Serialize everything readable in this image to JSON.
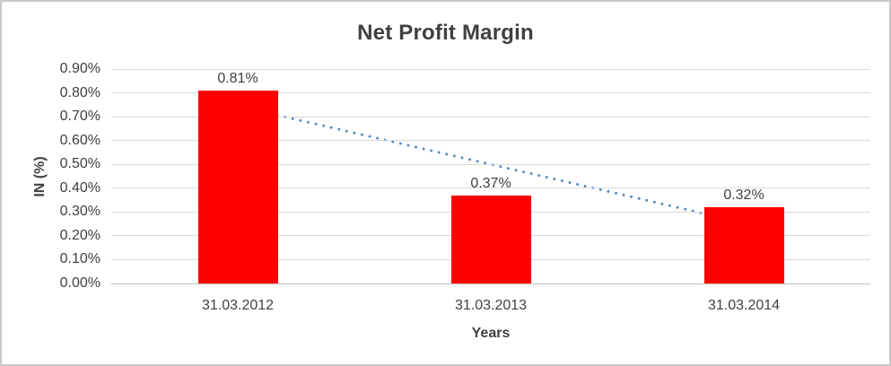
{
  "chart_data": {
    "type": "bar",
    "title": "Net Profit Margin",
    "xlabel": "Years",
    "ylabel": "IN (%)",
    "categories": [
      "31.03.2012",
      "31.03.2013",
      "31.03.2014"
    ],
    "values": [
      0.81,
      0.37,
      0.32
    ],
    "data_labels": [
      "0.81%",
      "0.37%",
      "0.32%"
    ],
    "ylim": [
      0,
      0.9
    ],
    "ytick_labels": [
      "0.90%",
      "0.80%",
      "0.70%",
      "0.60%",
      "0.50%",
      "0.40%",
      "0.30%",
      "0.20%",
      "0.10%",
      "0.00%"
    ],
    "grid": true,
    "legend": "none",
    "bar_color": "#FF0000",
    "trendline": {
      "style": "dotted",
      "color": "#4A86C8",
      "values": [
        0.745,
        0.5,
        0.255
      ]
    },
    "colors": {
      "gridline": "#D9D9D9",
      "axis_line": "#C0C0C0",
      "text": "#404040",
      "border": "#C8C8C8",
      "background": "#FFFFFF"
    }
  }
}
